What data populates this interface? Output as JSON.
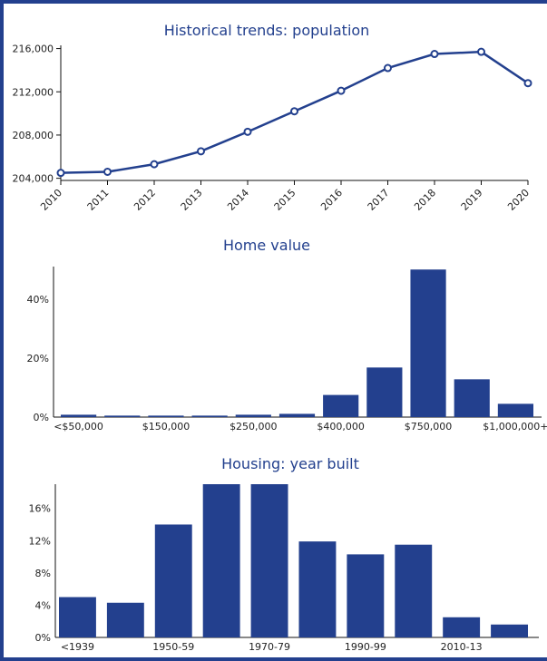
{
  "colors": {
    "frame": "#23408e",
    "series": "#23408e",
    "background": "#ffffff"
  },
  "chart_data": [
    {
      "type": "line",
      "title": "Historical trends: population",
      "x": [
        "2010",
        "2011",
        "2012",
        "2013",
        "2014",
        "2015",
        "2016",
        "2017",
        "2018",
        "2019",
        "2020"
      ],
      "values": [
        204500,
        204600,
        205300,
        206500,
        208300,
        210200,
        212100,
        214200,
        215500,
        215700,
        212800
      ],
      "yticks": [
        "204,000",
        "208,000",
        "212,000",
        "216,000"
      ],
      "ytick_values": [
        204000,
        208000,
        212000,
        216000
      ],
      "ylim": [
        203800,
        216300
      ],
      "grid": false
    },
    {
      "type": "bar",
      "title": "Home value",
      "categories": [
        "<$50,000",
        "",
        "$150,000",
        "",
        "$250,000",
        "",
        "$400,000",
        "",
        "$750,000",
        "",
        "$1,000,000+"
      ],
      "values": [
        0.8,
        0.5,
        0.5,
        0.5,
        0.8,
        1.1,
        7.5,
        16.8,
        50.0,
        12.8,
        4.5
      ],
      "yticks": [
        "0%",
        "20%",
        "40%"
      ],
      "ytick_values": [
        0,
        20,
        40
      ],
      "ylim": [
        0,
        51
      ],
      "grid": false
    },
    {
      "type": "bar",
      "title": "Housing: year built",
      "categories": [
        "<1939",
        "",
        "1950-59",
        "",
        "1970-79",
        "",
        "1990-99",
        "",
        "2010-13",
        ""
      ],
      "values": [
        5.0,
        4.3,
        14.0,
        19.0,
        19.0,
        11.9,
        10.3,
        11.5,
        2.5,
        1.6
      ],
      "yticks": [
        "0%",
        "4%",
        "8%",
        "12%",
        "16%"
      ],
      "ytick_values": [
        0,
        4,
        8,
        12,
        16
      ],
      "ylim": [
        0,
        19
      ],
      "grid": false
    }
  ]
}
